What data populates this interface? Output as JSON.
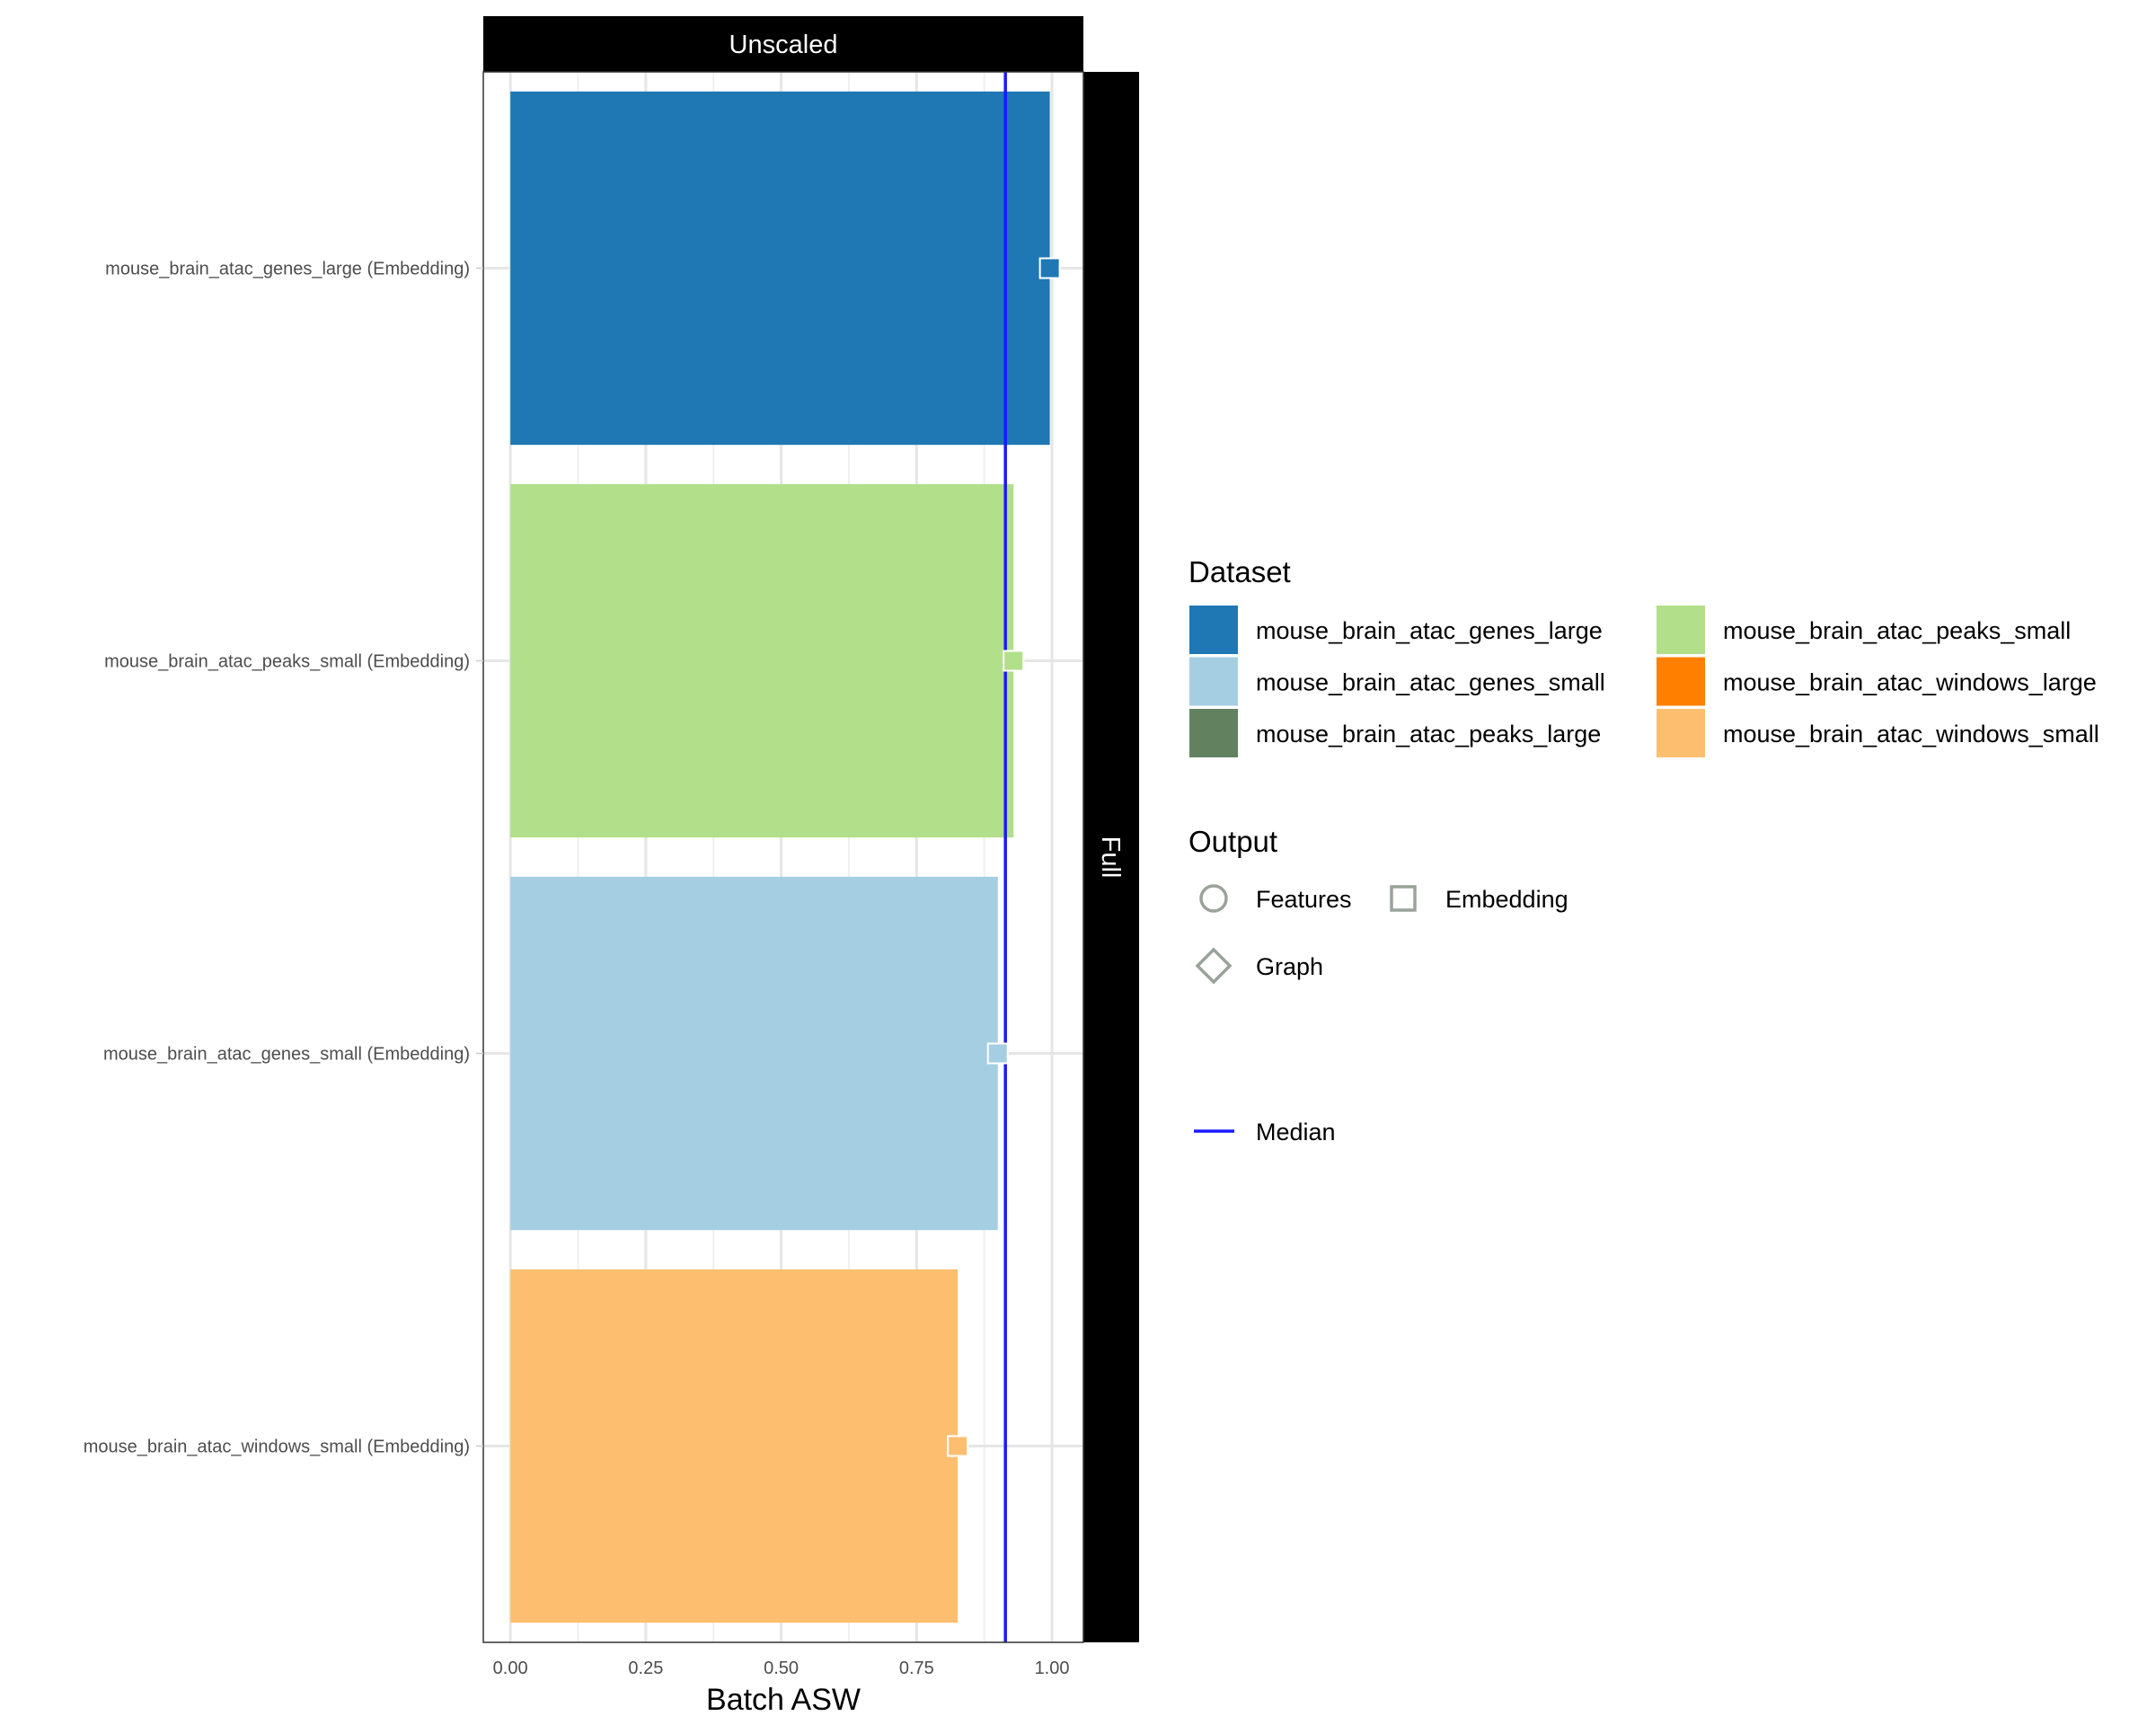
{
  "chart_data": {
    "type": "bar",
    "orientation": "horizontal",
    "facet_top": "Unscaled",
    "facet_right": "Full",
    "xlabel": "Batch ASW",
    "ylabel": "",
    "xlim": [
      -0.05,
      1.058
    ],
    "xticks": [
      0,
      0.25,
      0.5,
      0.75,
      1.0
    ],
    "xtick_labels": [
      "0.00",
      "0.25",
      "0.50",
      "0.75",
      "1.00"
    ],
    "grid": true,
    "median": 0.914,
    "categories": [
      "mouse_brain_atac_genes_large (Embedding)",
      "mouse_brain_atac_peaks_small (Embedding)",
      "mouse_brain_atac_genes_small (Embedding)",
      "mouse_brain_atac_windows_small (Embedding)"
    ],
    "values": [
      0.996,
      0.929,
      0.9,
      0.826
    ],
    "bar_datasets": [
      "mouse_brain_atac_genes_large",
      "mouse_brain_atac_peaks_small",
      "mouse_brain_atac_genes_small",
      "mouse_brain_atac_windows_small"
    ],
    "point_shape": "square",
    "legend_placement": "right",
    "legend": {
      "dataset_title": "Dataset",
      "datasets": [
        {
          "name": "mouse_brain_atac_genes_large",
          "color": "#1f78b4"
        },
        {
          "name": "mouse_brain_atac_genes_small",
          "color": "#a6cee3"
        },
        {
          "name": "mouse_brain_atac_peaks_large",
          "color": "#62825f"
        },
        {
          "name": "mouse_brain_atac_peaks_small",
          "color": "#b2df8a"
        },
        {
          "name": "mouse_brain_atac_windows_large",
          "color": "#ff7f00"
        },
        {
          "name": "mouse_brain_atac_windows_small",
          "color": "#fdbf6f"
        }
      ],
      "output_title": "Output",
      "outputs": [
        {
          "name": "Features",
          "shape": "circle"
        },
        {
          "name": "Embedding",
          "shape": "square"
        },
        {
          "name": "Graph",
          "shape": "diamond"
        }
      ],
      "median_label": "Median",
      "median_color": "#1a1aff"
    }
  }
}
